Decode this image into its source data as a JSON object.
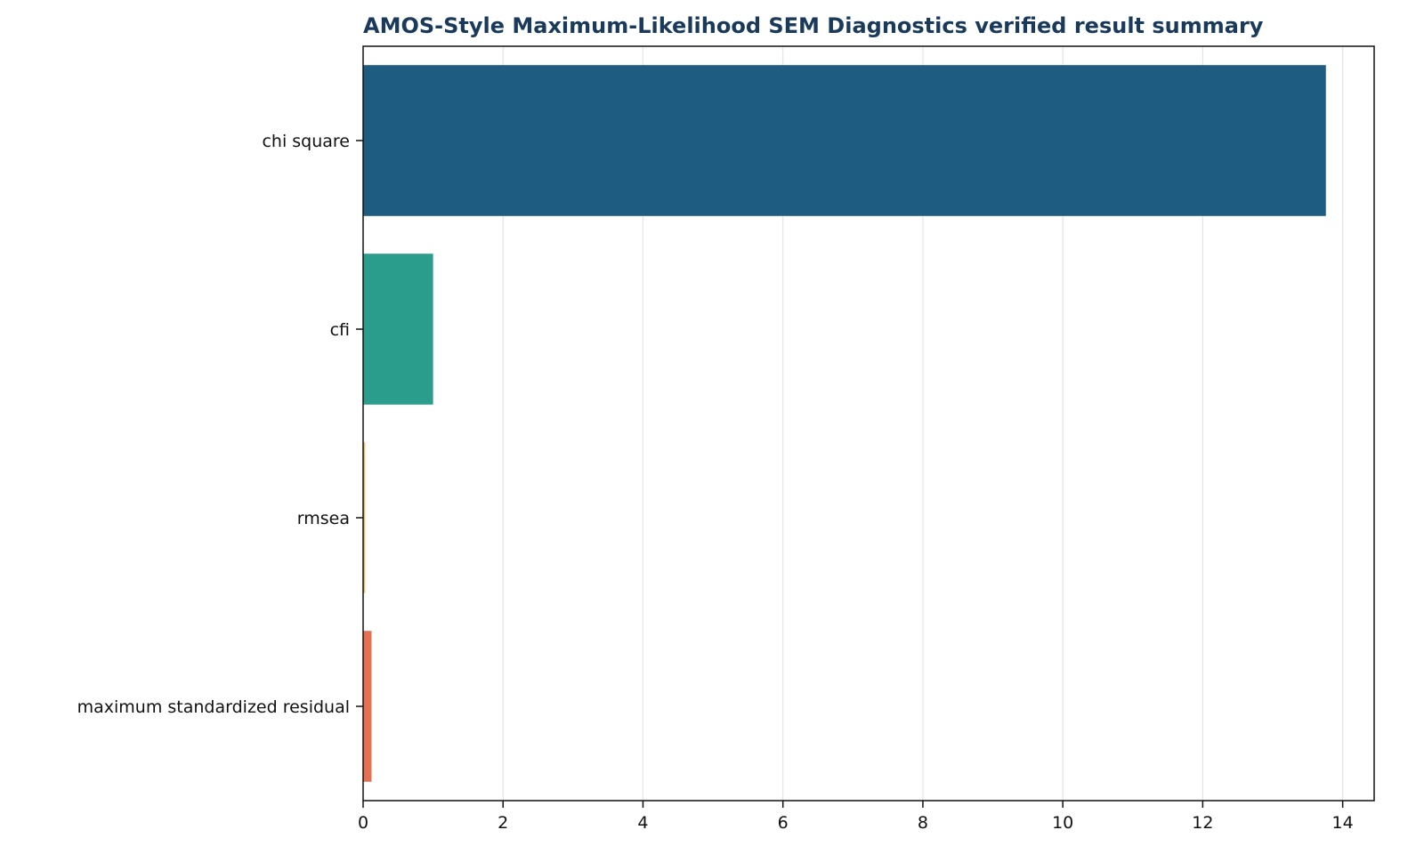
{
  "chart_data": {
    "type": "bar",
    "orientation": "horizontal",
    "title": "AMOS-Style Maximum-Likelihood SEM Diagnostics verified result summary",
    "xlabel": "",
    "ylabel": "",
    "categories": [
      "chi square",
      "cfi",
      "rmsea",
      "maximum standardized residual"
    ],
    "values": [
      13.76,
      1.0,
      0.03,
      0.12
    ],
    "colors": [
      "#1f5c82",
      "#2a9d8c",
      "#e9c46a",
      "#e76f51"
    ],
    "xlim": [
      0,
      14.45
    ],
    "xticks": [
      0,
      2,
      4,
      6,
      8,
      10,
      12,
      14
    ],
    "grid": "vertical",
    "legend": "none"
  }
}
